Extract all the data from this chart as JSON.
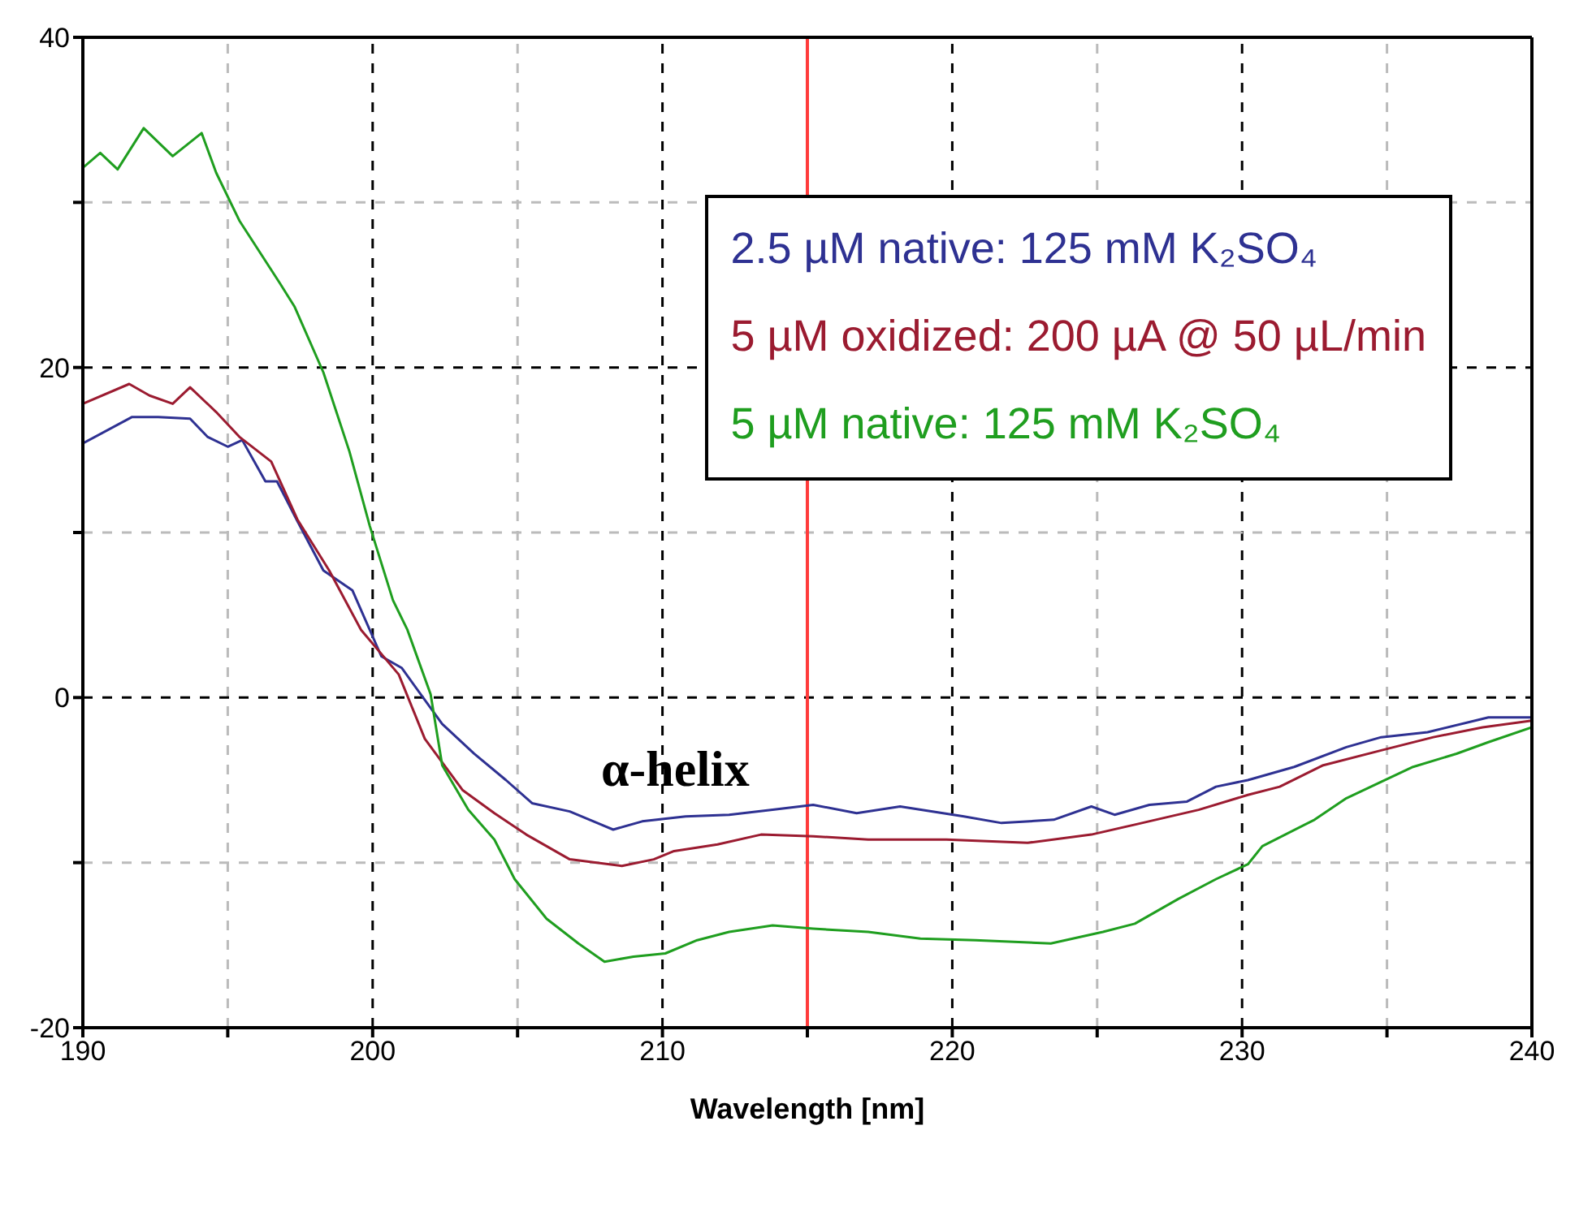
{
  "chart_data": {
    "type": "line",
    "xlabel": "Wavelength [nm]",
    "xlim": [
      190,
      240
    ],
    "ylim": [
      -20,
      40
    ],
    "xticks": [
      190,
      {
        "value": 195,
        "label": null
      },
      200,
      {
        "value": 205,
        "label": null
      },
      210,
      {
        "value": 215,
        "label": null
      },
      220,
      {
        "value": 225,
        "label": null
      },
      230,
      {
        "value": 235,
        "label": null
      },
      240
    ],
    "yticks": [
      -20,
      {
        "value": -10,
        "label": null
      },
      0,
      {
        "value": 10,
        "label": null
      },
      20,
      {
        "value": 30,
        "label": null
      },
      40
    ],
    "grid": true,
    "legend": "top right",
    "marker": "none",
    "line_style": "solid",
    "ref_lines": [
      {
        "axis": "x",
        "value": 215,
        "color": "#ff3b3b"
      }
    ],
    "annotations": [
      "α-helix"
    ],
    "series": [
      {
        "name": "2.5 µM native: 125 mM K₂SO₄",
        "color": "#2e3192",
        "x": [
          190,
          191.7,
          192.6,
          193.7,
          194.3,
          195.0,
          195.5,
          196.3,
          196.7,
          197.4,
          198.3,
          199.3,
          200.3,
          201.0,
          202.4,
          203.5,
          204.6,
          205.5,
          206.8,
          208.3,
          209.3,
          210.8,
          212.3,
          213.8,
          215.2,
          216.7,
          218.2,
          220.4,
          221.7,
          223.5,
          224.8,
          225.6,
          226.8,
          228.1,
          229.1,
          230.2,
          231.8,
          233.6,
          234.8,
          236.4,
          238.5,
          240
        ],
        "values": [
          15.4,
          17.0,
          17.0,
          16.9,
          15.8,
          15.2,
          15.6,
          13.1,
          13.1,
          10.7,
          7.7,
          6.5,
          2.5,
          1.8,
          -1.6,
          -3.4,
          -5.0,
          -6.4,
          -6.9,
          -8.0,
          -7.5,
          -7.2,
          -7.1,
          -6.8,
          -6.5,
          -7.0,
          -6.6,
          -7.2,
          -7.6,
          -7.4,
          -6.6,
          -7.1,
          -6.5,
          -6.3,
          -5.4,
          -5.0,
          -4.2,
          -3.0,
          -2.4,
          -2.1,
          -1.2,
          -1.2
        ]
      },
      {
        "name": "5 µM oxidized: 200 µA @ 50 µL/min",
        "color": "#9b1b30",
        "x": [
          190,
          191.6,
          192.3,
          193.1,
          193.7,
          194.6,
          195.4,
          196.5,
          197.4,
          198.5,
          199.6,
          200.9,
          201.8,
          203.1,
          204.2,
          205.3,
          206.8,
          208.6,
          209.7,
          210.4,
          211.9,
          213.4,
          215.2,
          217.1,
          219.8,
          222.6,
          224.8,
          226.3,
          228.5,
          230.2,
          231.3,
          232.8,
          234.8,
          236.6,
          238.3,
          240
        ],
        "values": [
          17.8,
          19.0,
          18.3,
          17.8,
          18.8,
          17.3,
          15.8,
          14.3,
          10.8,
          7.7,
          4.1,
          1.4,
          -2.5,
          -5.6,
          -7.0,
          -8.3,
          -9.8,
          -10.2,
          -9.8,
          -9.3,
          -8.9,
          -8.3,
          -8.4,
          -8.6,
          -8.6,
          -8.8,
          -8.3,
          -7.7,
          -6.8,
          -5.9,
          -5.4,
          -4.1,
          -3.2,
          -2.4,
          -1.8,
          -1.4
        ]
      },
      {
        "name": "5 µM native: 125 mM K₂SO₄",
        "color": "#1f9e1f",
        "x": [
          190,
          190.6,
          191.2,
          192.1,
          193.1,
          194.1,
          194.6,
          195.4,
          196.8,
          197.3,
          198.3,
          199.2,
          199.9,
          200.7,
          201.2,
          202.0,
          202.4,
          203.3,
          204.2,
          204.9,
          206.0,
          207.1,
          208.0,
          209.0,
          210.1,
          211.2,
          212.3,
          213.8,
          215.2,
          217.1,
          218.9,
          220.8,
          223.4,
          225.2,
          226.3,
          227.8,
          229.1,
          230.2,
          230.7,
          232.5,
          233.6,
          234.8,
          235.9,
          237.4,
          238.5,
          240
        ],
        "values": [
          32.1,
          33.0,
          32.0,
          34.5,
          32.8,
          34.2,
          31.8,
          28.9,
          25.1,
          23.7,
          19.7,
          14.9,
          10.4,
          5.9,
          4.1,
          0.2,
          -4.1,
          -6.8,
          -8.6,
          -11.0,
          -13.4,
          -14.9,
          -16.0,
          -15.7,
          -15.5,
          -14.7,
          -14.2,
          -13.8,
          -14.0,
          -14.2,
          -14.6,
          -14.7,
          -14.9,
          -14.2,
          -13.7,
          -12.2,
          -11.0,
          -10.1,
          -9.0,
          -7.4,
          -6.1,
          -5.1,
          -4.2,
          -3.4,
          -2.7,
          -1.8
        ]
      }
    ]
  }
}
